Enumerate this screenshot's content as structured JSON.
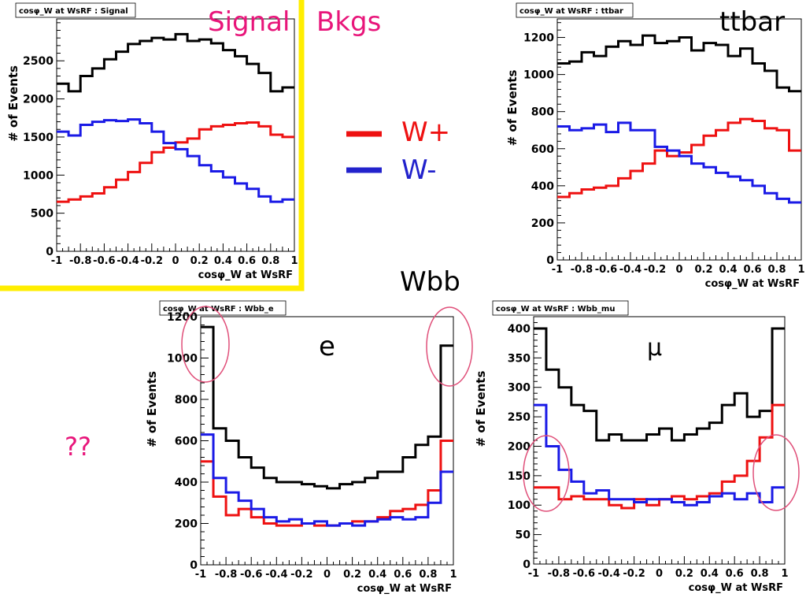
{
  "headers": {
    "signal": "Signal",
    "bkgs": "Bkgs",
    "ttbar": "ttbar",
    "wbb": "Wbb",
    "question": "??"
  },
  "legend": [
    {
      "label": "W+",
      "color": "#ee1111"
    },
    {
      "label": "W-",
      "color": "#2222cc"
    }
  ],
  "colors": {
    "total": "#000000",
    "wplus": "#ee1111",
    "wminus": "#1a1ae6",
    "highlight": "#ffee00",
    "circle": "#e0507a",
    "accent_text": "#e8157a"
  },
  "chart_data": [
    {
      "type": "line",
      "title": "cosφ_W at WsRF : Signal",
      "xlabel": "cosφ_W at WsRF",
      "ylabel": "# of Events",
      "xlim": [
        -1,
        1
      ],
      "ylim": [
        0,
        3050
      ],
      "yticks": [
        0,
        500,
        1000,
        1500,
        2000,
        2500
      ],
      "xticks": [
        -1,
        -0.8,
        -0.6,
        -0.4,
        -0.2,
        0,
        0.2,
        0.4,
        0.6,
        0.8,
        1
      ],
      "bin_edges": [
        -1,
        -0.9,
        -0.8,
        -0.7,
        -0.6,
        -0.5,
        -0.4,
        -0.3,
        -0.2,
        -0.1,
        0,
        0.1,
        0.2,
        0.3,
        0.4,
        0.5,
        0.6,
        0.7,
        0.8,
        0.9,
        1
      ],
      "series": [
        {
          "color_key": "total",
          "values": [
            2200,
            2100,
            2300,
            2400,
            2520,
            2620,
            2720,
            2760,
            2800,
            2780,
            2850,
            2760,
            2780,
            2730,
            2640,
            2560,
            2460,
            2340,
            2100,
            2150
          ]
        },
        {
          "color_key": "wplus",
          "values": [
            650,
            680,
            720,
            760,
            840,
            940,
            1040,
            1160,
            1300,
            1360,
            1430,
            1480,
            1600,
            1640,
            1660,
            1680,
            1690,
            1640,
            1530,
            1500
          ]
        },
        {
          "color_key": "wminus",
          "values": [
            1570,
            1520,
            1660,
            1700,
            1720,
            1710,
            1730,
            1680,
            1570,
            1420,
            1340,
            1250,
            1130,
            1050,
            970,
            890,
            820,
            720,
            650,
            680
          ]
        }
      ]
    },
    {
      "type": "line",
      "title": "cosφ_W at WsRF : ttbar",
      "xlabel": "cosφ_W at WsRF",
      "ylabel": "# of Events",
      "xlim": [
        -1,
        1
      ],
      "ylim": [
        0,
        1300
      ],
      "yticks": [
        0,
        200,
        400,
        600,
        800,
        1000,
        1200
      ],
      "xticks": [
        -1,
        -0.8,
        -0.6,
        -0.4,
        -0.2,
        0,
        0.2,
        0.4,
        0.6,
        0.8,
        1
      ],
      "bin_edges": [
        -1,
        -0.9,
        -0.8,
        -0.7,
        -0.6,
        -0.5,
        -0.4,
        -0.3,
        -0.2,
        -0.1,
        0,
        0.1,
        0.2,
        0.3,
        0.4,
        0.5,
        0.6,
        0.7,
        0.8,
        0.9,
        1
      ],
      "series": [
        {
          "color_key": "total",
          "values": [
            1060,
            1070,
            1120,
            1100,
            1150,
            1180,
            1160,
            1210,
            1170,
            1180,
            1200,
            1130,
            1170,
            1160,
            1100,
            1140,
            1060,
            1020,
            930,
            910
          ]
        },
        {
          "color_key": "wplus",
          "values": [
            340,
            360,
            380,
            390,
            400,
            440,
            480,
            520,
            590,
            560,
            580,
            620,
            670,
            700,
            740,
            760,
            750,
            710,
            700,
            590
          ]
        },
        {
          "color_key": "wminus",
          "values": [
            720,
            700,
            710,
            730,
            690,
            740,
            700,
            700,
            610,
            590,
            560,
            520,
            500,
            470,
            450,
            430,
            400,
            360,
            330,
            310
          ]
        }
      ]
    },
    {
      "type": "line",
      "title": "cosφ_W at WsRF : Wbb_e",
      "xlabel": "cosφ_W at WsRF",
      "ylabel": "# of Events",
      "xlim": [
        -1,
        1
      ],
      "ylim": [
        0,
        1200
      ],
      "yticks": [
        0,
        200,
        400,
        600,
        800,
        1000,
        1200
      ],
      "xticks": [
        -1,
        -0.8,
        -0.6,
        -0.4,
        -0.2,
        0,
        0.2,
        0.4,
        0.6,
        0.8,
        1
      ],
      "annotation": "e",
      "bin_edges": [
        -1,
        -0.9,
        -0.8,
        -0.7,
        -0.6,
        -0.5,
        -0.4,
        -0.3,
        -0.2,
        -0.1,
        0,
        0.1,
        0.2,
        0.3,
        0.4,
        0.5,
        0.6,
        0.7,
        0.8,
        0.9,
        1
      ],
      "series": [
        {
          "color_key": "total",
          "values": [
            1150,
            660,
            600,
            520,
            470,
            420,
            400,
            400,
            390,
            380,
            370,
            390,
            400,
            420,
            450,
            450,
            520,
            580,
            620,
            1060
          ]
        },
        {
          "color_key": "wplus",
          "values": [
            500,
            330,
            240,
            270,
            230,
            200,
            190,
            190,
            200,
            190,
            190,
            200,
            210,
            210,
            230,
            260,
            270,
            290,
            360,
            600
          ]
        },
        {
          "color_key": "wminus",
          "values": [
            630,
            420,
            350,
            310,
            270,
            230,
            210,
            220,
            200,
            210,
            190,
            200,
            190,
            210,
            220,
            230,
            220,
            230,
            300,
            450
          ]
        }
      ]
    },
    {
      "type": "line",
      "title": "cosφ_W at WsRF : Wbb_mu",
      "xlabel": "cosφ_W at WsRF",
      "ylabel": "# of Events",
      "xlim": [
        -1,
        1
      ],
      "ylim": [
        0,
        420
      ],
      "yticks": [
        0,
        50,
        100,
        150,
        200,
        250,
        300,
        350,
        400
      ],
      "xticks": [
        -1,
        -0.8,
        -0.6,
        -0.4,
        -0.2,
        0,
        0.2,
        0.4,
        0.6,
        0.8,
        1
      ],
      "annotation": "μ",
      "bin_edges": [
        -1,
        -0.9,
        -0.8,
        -0.7,
        -0.6,
        -0.5,
        -0.4,
        -0.3,
        -0.2,
        -0.1,
        0,
        0.1,
        0.2,
        0.3,
        0.4,
        0.5,
        0.6,
        0.7,
        0.8,
        0.9,
        1
      ],
      "series": [
        {
          "color_key": "total",
          "values": [
            400,
            330,
            300,
            270,
            260,
            210,
            220,
            210,
            210,
            220,
            230,
            210,
            220,
            230,
            240,
            270,
            290,
            250,
            260,
            400
          ]
        },
        {
          "color_key": "wplus",
          "values": [
            130,
            130,
            110,
            115,
            110,
            110,
            100,
            95,
            110,
            100,
            110,
            115,
            110,
            115,
            120,
            140,
            150,
            175,
            215,
            270
          ]
        },
        {
          "color_key": "wminus",
          "values": [
            270,
            200,
            160,
            140,
            120,
            125,
            110,
            110,
            105,
            110,
            110,
            105,
            100,
            105,
            115,
            120,
            110,
            120,
            105,
            130
          ]
        }
      ]
    }
  ]
}
